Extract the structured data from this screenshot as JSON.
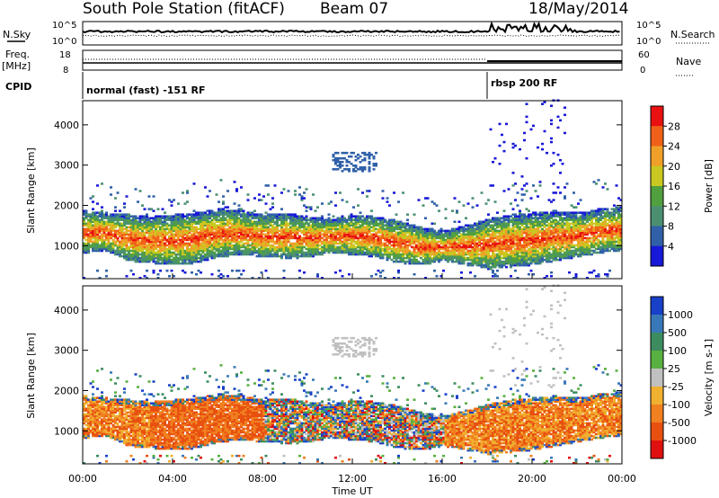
{
  "header": {
    "station": "South Pole Station (fitACF)",
    "beam": "Beam 07",
    "date": "18/May/2014"
  },
  "top_panels": {
    "nsky_label": "N.Sky",
    "nsearch_label": "N.Search",
    "nsky_scale": [
      "10^5",
      "10^0"
    ],
    "nsearch_scale": [
      "10^5",
      "10^0"
    ],
    "freq_label": [
      "Freq.",
      "[MHz]"
    ],
    "freq_scale": [
      "18",
      "8"
    ],
    "nave_label": "Nave",
    "nave_scale": [
      "60",
      "0"
    ],
    "cpid_label": "CPID",
    "cpid_segments": [
      {
        "label": "normal (fast) -151 RF",
        "start_hour": 0
      },
      {
        "label": "rbsp 200 RF",
        "start_hour": 18
      }
    ],
    "freq_mhz": [
      {
        "hour_from": 0,
        "hour_to": 18,
        "value": 12.5
      },
      {
        "hour_from": 18,
        "hour_to": 24,
        "value": 12.0
      }
    ]
  },
  "power_colorbar": {
    "label": "Power [dB]",
    "ticks": [
      "28",
      "24",
      "20",
      "16",
      "12",
      "8",
      "4"
    ],
    "colors": [
      "#e81010",
      "#f06018",
      "#f0a028",
      "#c8c820",
      "#50a040",
      "#4a9070",
      "#3060a8",
      "#1818d8"
    ]
  },
  "velocity_colorbar": {
    "label": "Velocity [m s-1]",
    "ticks": [
      "1000",
      "500",
      "100",
      "25",
      "-25",
      "-100",
      "-500",
      "-1000"
    ],
    "colors": [
      "#1840c8",
      "#3878b8",
      "#3c8c60",
      "#58b040",
      "#c0c0c0",
      "#f0b030",
      "#f08020",
      "#e85010",
      "#e01010"
    ]
  },
  "chart_data": [
    {
      "type": "heatmap",
      "name": "power",
      "ylabel": "Slant Range [km]",
      "ylim": [
        180,
        4600
      ],
      "xlim": [
        0,
        24
      ],
      "yticks": [
        1000,
        2000,
        3000,
        4000
      ],
      "band_lower_km": [
        [
          0,
          900
        ],
        [
          1,
          950
        ],
        [
          2,
          700
        ],
        [
          3,
          650
        ],
        [
          4,
          600
        ],
        [
          5,
          650
        ],
        [
          6,
          800
        ],
        [
          7,
          850
        ],
        [
          8,
          800
        ],
        [
          9,
          750
        ],
        [
          10,
          800
        ],
        [
          11,
          900
        ],
        [
          12,
          850
        ],
        [
          13,
          800
        ],
        [
          14,
          650
        ],
        [
          15,
          600
        ],
        [
          16,
          700
        ],
        [
          17,
          600
        ],
        [
          18,
          500
        ],
        [
          19,
          550
        ],
        [
          20,
          600
        ],
        [
          21,
          700
        ],
        [
          22,
          800
        ],
        [
          23,
          900
        ],
        [
          24,
          950
        ]
      ],
      "band_upper_km": [
        [
          0,
          1700
        ],
        [
          1,
          1650
        ],
        [
          2,
          1600
        ],
        [
          3,
          1550
        ],
        [
          4,
          1600
        ],
        [
          5,
          1650
        ],
        [
          6,
          1750
        ],
        [
          7,
          1700
        ],
        [
          8,
          1600
        ],
        [
          9,
          1650
        ],
        [
          10,
          1550
        ],
        [
          11,
          1500
        ],
        [
          12,
          1600
        ],
        [
          13,
          1550
        ],
        [
          14,
          1450
        ],
        [
          15,
          1300
        ],
        [
          16,
          1200
        ],
        [
          17,
          1350
        ],
        [
          18,
          1500
        ],
        [
          19,
          1600
        ],
        [
          20,
          1650
        ],
        [
          21,
          1700
        ],
        [
          22,
          1650
        ],
        [
          23,
          1750
        ],
        [
          24,
          1800
        ]
      ]
    },
    {
      "type": "heatmap",
      "name": "velocity",
      "ylabel": "Slant Range [km]",
      "xlabel": "Time UT",
      "ylim": [
        180,
        4600
      ],
      "xlim": [
        0,
        24
      ],
      "yticks": [
        1000,
        2000,
        3000,
        4000
      ],
      "xticks": [
        "00:00",
        "04:00",
        "08:00",
        "12:00",
        "16:00",
        "20:00",
        "00:00"
      ],
      "xtick_hours": [
        0,
        4,
        8,
        12,
        16,
        20,
        24
      ]
    }
  ]
}
